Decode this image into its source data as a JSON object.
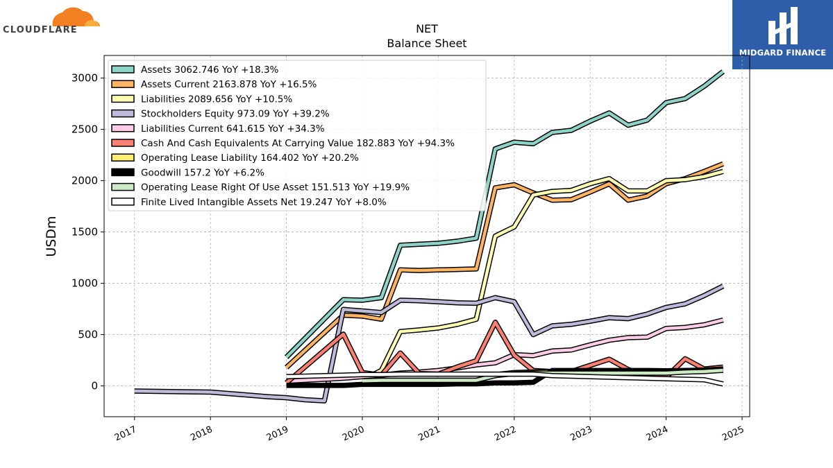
{
  "brand_left": {
    "name": "CLOUDFLARE",
    "icon": "cloud-logo-icon",
    "color": "#f38020"
  },
  "brand_right": {
    "name": "MIDGARD FINANCE",
    "icon": "midgard-logo-icon",
    "color": "#2e5eaa"
  },
  "chart_data": {
    "type": "line",
    "title": "NET",
    "subtitle": "Balance  Sheet",
    "xlabel": "",
    "ylabel": "USDm",
    "xlim": [
      2016.6,
      2025.1
    ],
    "ylim": [
      -300,
      3220
    ],
    "xticks": [
      "2017",
      "2018",
      "2019",
      "2020",
      "2021",
      "2022",
      "2023",
      "2024",
      "2025"
    ],
    "yticks": [
      0,
      500,
      1000,
      1500,
      2000,
      2500,
      3000
    ],
    "grid": true,
    "legend_position": "top-left",
    "series": [
      {
        "name": "Assets",
        "legend": "Assets  3062.746 YoY +18.3%",
        "color": "#8dd3c7",
        "points": [
          [
            2019.0,
            280
          ],
          [
            2019.75,
            840
          ],
          [
            2020.0,
            835
          ],
          [
            2020.25,
            860
          ],
          [
            2020.5,
            1370
          ],
          [
            2020.75,
            1380
          ],
          [
            2021.0,
            1390
          ],
          [
            2021.25,
            1410
          ],
          [
            2021.5,
            1440
          ],
          [
            2021.75,
            2310
          ],
          [
            2022.0,
            2375
          ],
          [
            2022.25,
            2360
          ],
          [
            2022.5,
            2470
          ],
          [
            2022.75,
            2490
          ],
          [
            2023.0,
            2580
          ],
          [
            2023.25,
            2660
          ],
          [
            2023.5,
            2540
          ],
          [
            2023.75,
            2590
          ],
          [
            2024.0,
            2760
          ],
          [
            2024.25,
            2800
          ],
          [
            2024.5,
            2920
          ],
          [
            2024.75,
            3063
          ]
        ]
      },
      {
        "name": "Assets Current",
        "legend": "Assets Current  2163.878 YoY +16.5%",
        "color": "#fdb462",
        "points": [
          [
            2019.0,
            180
          ],
          [
            2019.75,
            690
          ],
          [
            2020.0,
            680
          ],
          [
            2020.25,
            650
          ],
          [
            2020.5,
            1130
          ],
          [
            2020.75,
            1125
          ],
          [
            2021.0,
            1130
          ],
          [
            2021.25,
            1135
          ],
          [
            2021.5,
            1140
          ],
          [
            2021.75,
            1930
          ],
          [
            2022.0,
            1960
          ],
          [
            2022.25,
            1880
          ],
          [
            2022.5,
            1810
          ],
          [
            2022.75,
            1815
          ],
          [
            2023.0,
            1890
          ],
          [
            2023.25,
            1970
          ],
          [
            2023.5,
            1810
          ],
          [
            2023.75,
            1850
          ],
          [
            2024.0,
            1970
          ],
          [
            2024.25,
            2020
          ],
          [
            2024.5,
            2090
          ],
          [
            2024.75,
            2164
          ]
        ]
      },
      {
        "name": "Liabilities",
        "legend": "Liabilities  2089.656 YoY +10.5%",
        "color": "#ffffb3",
        "points": [
          [
            2020.0,
            60
          ],
          [
            2020.25,
            150
          ],
          [
            2020.5,
            530
          ],
          [
            2020.75,
            545
          ],
          [
            2021.0,
            565
          ],
          [
            2021.25,
            600
          ],
          [
            2021.5,
            650
          ],
          [
            2021.75,
            1460
          ],
          [
            2022.0,
            1550
          ],
          [
            2022.25,
            1860
          ],
          [
            2022.5,
            1895
          ],
          [
            2022.75,
            1905
          ],
          [
            2023.0,
            1970
          ],
          [
            2023.25,
            2020
          ],
          [
            2023.5,
            1900
          ],
          [
            2023.75,
            1900
          ],
          [
            2024.0,
            2000
          ],
          [
            2024.25,
            2010
          ],
          [
            2024.5,
            2040
          ],
          [
            2024.75,
            2090
          ]
        ]
      },
      {
        "name": "Stockholders Equity",
        "legend": "Stockholders Equity  973.09 YoY +39.2%",
        "color": "#bebada",
        "points": [
          [
            2017.0,
            -50
          ],
          [
            2018.0,
            -60
          ],
          [
            2018.5,
            -90
          ],
          [
            2018.75,
            -105
          ],
          [
            2019.0,
            -115
          ],
          [
            2019.25,
            -135
          ],
          [
            2019.5,
            -145
          ],
          [
            2019.75,
            745
          ],
          [
            2020.0,
            730
          ],
          [
            2020.25,
            715
          ],
          [
            2020.5,
            835
          ],
          [
            2020.75,
            830
          ],
          [
            2021.0,
            820
          ],
          [
            2021.25,
            810
          ],
          [
            2021.5,
            805
          ],
          [
            2021.75,
            860
          ],
          [
            2022.0,
            820
          ],
          [
            2022.25,
            500
          ],
          [
            2022.5,
            585
          ],
          [
            2022.75,
            600
          ],
          [
            2023.0,
            630
          ],
          [
            2023.25,
            665
          ],
          [
            2023.5,
            655
          ],
          [
            2023.75,
            700
          ],
          [
            2024.0,
            765
          ],
          [
            2024.25,
            800
          ],
          [
            2024.5,
            880
          ],
          [
            2024.75,
            973
          ]
        ]
      },
      {
        "name": "Liabilities Current",
        "legend": "Liabilities Current  641.615 YoY +34.3%",
        "color": "#fccde5",
        "points": [
          [
            2019.0,
            45
          ],
          [
            2019.75,
            75
          ],
          [
            2020.0,
            90
          ],
          [
            2020.25,
            105
          ],
          [
            2020.5,
            125
          ],
          [
            2020.75,
            135
          ],
          [
            2021.0,
            150
          ],
          [
            2021.25,
            175
          ],
          [
            2021.5,
            205
          ],
          [
            2021.75,
            225
          ],
          [
            2022.0,
            305
          ],
          [
            2022.25,
            295
          ],
          [
            2022.5,
            340
          ],
          [
            2022.75,
            350
          ],
          [
            2023.0,
            400
          ],
          [
            2023.25,
            445
          ],
          [
            2023.5,
            470
          ],
          [
            2023.75,
            475
          ],
          [
            2024.0,
            560
          ],
          [
            2024.25,
            570
          ],
          [
            2024.5,
            595
          ],
          [
            2024.75,
            642
          ]
        ]
      },
      {
        "name": "Cash And Cash Equivalents At Carrying Value",
        "legend": "Cash And Cash Equivalents At Carrying Value  182.883 YoY +94.3%",
        "color": "#fb8072",
        "points": [
          [
            2019.0,
            30
          ],
          [
            2019.75,
            505
          ],
          [
            2020.0,
            130
          ],
          [
            2020.25,
            105
          ],
          [
            2020.5,
            320
          ],
          [
            2020.75,
            120
          ],
          [
            2021.0,
            115
          ],
          [
            2021.25,
            185
          ],
          [
            2021.5,
            245
          ],
          [
            2021.75,
            620
          ],
          [
            2022.0,
            300
          ],
          [
            2022.25,
            150
          ],
          [
            2022.5,
            140
          ],
          [
            2022.75,
            140
          ],
          [
            2023.0,
            200
          ],
          [
            2023.25,
            260
          ],
          [
            2023.5,
            160
          ],
          [
            2023.75,
            90
          ],
          [
            2024.0,
            85
          ],
          [
            2024.25,
            265
          ],
          [
            2024.5,
            165
          ],
          [
            2024.75,
            183
          ]
        ]
      },
      {
        "name": "Operating Lease Liability",
        "legend": "Operating Lease Liability  164.402 YoY +20.2%",
        "color": "#ffed6f",
        "points": [
          [
            2020.0,
            50
          ],
          [
            2020.25,
            55
          ],
          [
            2020.5,
            55
          ],
          [
            2020.75,
            55
          ],
          [
            2021.0,
            55
          ],
          [
            2021.25,
            55
          ],
          [
            2021.5,
            55
          ],
          [
            2021.75,
            110
          ],
          [
            2022.0,
            130
          ],
          [
            2022.25,
            135
          ],
          [
            2022.5,
            140
          ],
          [
            2022.75,
            140
          ],
          [
            2023.0,
            140
          ],
          [
            2023.25,
            140
          ],
          [
            2023.5,
            140
          ],
          [
            2023.75,
            140
          ],
          [
            2024.0,
            140
          ],
          [
            2024.25,
            150
          ],
          [
            2024.5,
            155
          ],
          [
            2024.75,
            164
          ]
        ]
      },
      {
        "name": "Goodwill",
        "legend": "Goodwill  157.2 YoY +6.2%",
        "color": "#000000",
        "points": [
          [
            2019.0,
            5
          ],
          [
            2019.75,
            5
          ],
          [
            2020.0,
            15
          ],
          [
            2020.25,
            15
          ],
          [
            2020.5,
            15
          ],
          [
            2020.75,
            15
          ],
          [
            2021.0,
            15
          ],
          [
            2021.25,
            20
          ],
          [
            2021.5,
            20
          ],
          [
            2021.75,
            30
          ],
          [
            2022.0,
            30
          ],
          [
            2022.25,
            35
          ],
          [
            2022.5,
            150
          ],
          [
            2022.75,
            150
          ],
          [
            2023.0,
            150
          ],
          [
            2023.25,
            150
          ],
          [
            2023.5,
            150
          ],
          [
            2023.75,
            150
          ],
          [
            2024.0,
            148
          ],
          [
            2024.25,
            150
          ],
          [
            2024.5,
            150
          ],
          [
            2024.75,
            157
          ]
        ]
      },
      {
        "name": "Operating Lease Right Of Use Asset",
        "legend": "Operating Lease Right Of Use Asset  151.513 YoY +19.9%",
        "color": "#ccebc5",
        "points": [
          [
            2020.0,
            50
          ],
          [
            2020.25,
            55
          ],
          [
            2020.5,
            55
          ],
          [
            2020.75,
            55
          ],
          [
            2021.0,
            55
          ],
          [
            2021.25,
            55
          ],
          [
            2021.5,
            55
          ],
          [
            2021.75,
            100
          ],
          [
            2022.0,
            120
          ],
          [
            2022.25,
            125
          ],
          [
            2022.5,
            125
          ],
          [
            2022.75,
            125
          ],
          [
            2023.0,
            125
          ],
          [
            2023.25,
            125
          ],
          [
            2023.5,
            125
          ],
          [
            2023.75,
            125
          ],
          [
            2024.0,
            125
          ],
          [
            2024.25,
            135
          ],
          [
            2024.5,
            140
          ],
          [
            2024.75,
            152
          ]
        ]
      },
      {
        "name": "Finite Lived Intangible Assets Net",
        "legend": "Finite Lived Intangible Assets Net  19.247 YoY +8.0%",
        "color": "#ffffff",
        "points": [
          [
            2019.0,
            90
          ],
          [
            2019.75,
            105
          ],
          [
            2020.0,
            110
          ],
          [
            2020.25,
            110
          ],
          [
            2020.5,
            115
          ],
          [
            2020.75,
            115
          ],
          [
            2021.0,
            115
          ],
          [
            2021.25,
            115
          ],
          [
            2021.5,
            115
          ],
          [
            2021.75,
            115
          ],
          [
            2022.0,
            115
          ],
          [
            2022.25,
            115
          ],
          [
            2022.5,
            100
          ],
          [
            2022.75,
            95
          ],
          [
            2023.0,
            90
          ],
          [
            2023.25,
            85
          ],
          [
            2023.5,
            80
          ],
          [
            2023.75,
            75
          ],
          [
            2024.0,
            70
          ],
          [
            2024.25,
            65
          ],
          [
            2024.5,
            60
          ],
          [
            2024.75,
            19
          ]
        ]
      }
    ]
  }
}
